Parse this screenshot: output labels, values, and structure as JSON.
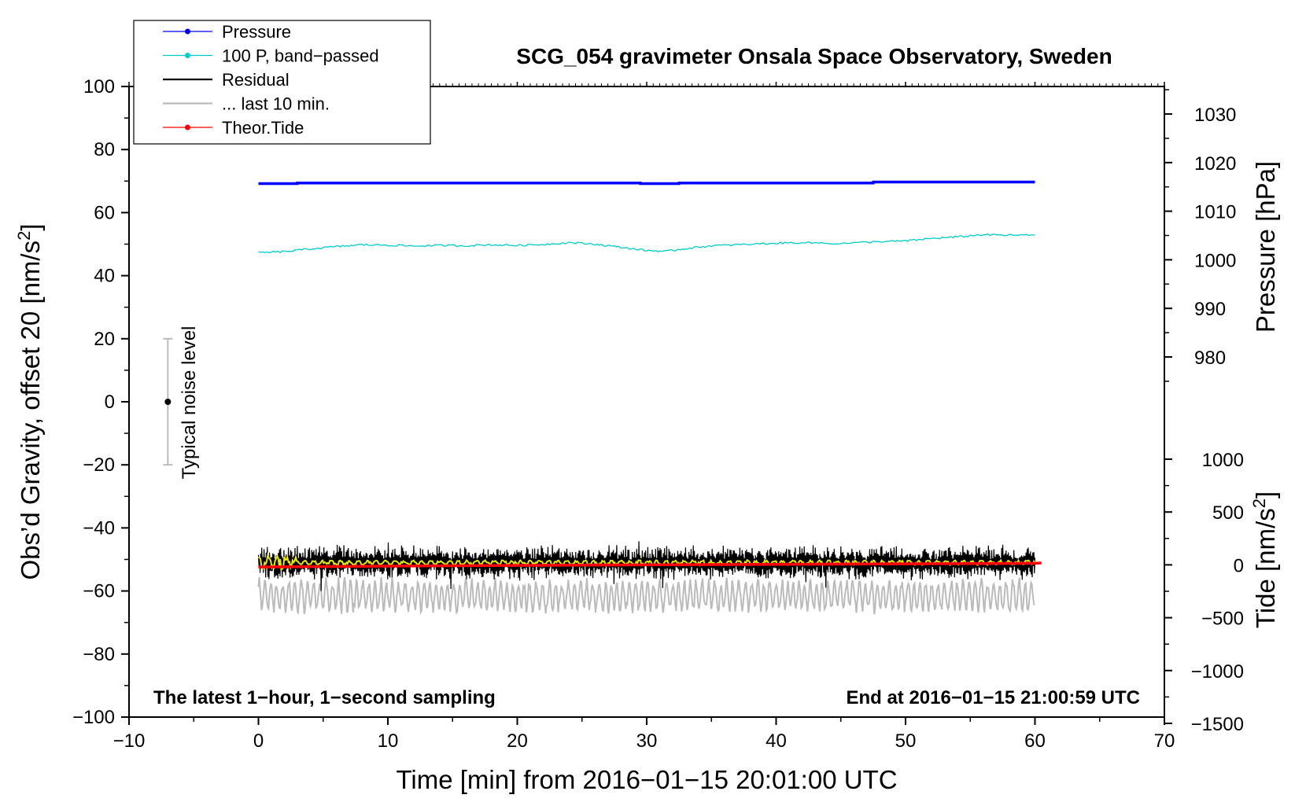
{
  "chart_data": {
    "type": "line",
    "title": "SCG_054 gravimeter Onsala Space Observatory, Sweden",
    "xlabel": "Time [min] from 2016−01−15 20:01:00 UTC",
    "ylabel_left": "Obs’d Gravity, offset 20 [nm/s",
    "ylabel_left_sup": "2",
    "ylabel_left_end": "]",
    "ylabel_right_top": "Pressure [hPa]",
    "ylabel_right_bottom": "Tide [nm/s",
    "ylabel_right_bottom_sup": "2",
    "ylabel_right_bottom_end": "]",
    "xlim": [
      -10,
      70
    ],
    "ylim_left": [
      -100,
      100
    ],
    "pressure_axis_range": [
      970,
      1035
    ],
    "tide_axis_range": [
      -1500,
      1100
    ],
    "x_ticks": [
      -10,
      0,
      10,
      20,
      30,
      40,
      50,
      60,
      70
    ],
    "x_tick_labels": [
      "−10",
      "0",
      "10",
      "20",
      "30",
      "40",
      "50",
      "60",
      "70"
    ],
    "y_left_ticks": [
      -100,
      -80,
      -60,
      -40,
      -20,
      0,
      20,
      40,
      60,
      80,
      100
    ],
    "y_left_tick_labels": [
      "−100",
      "−80",
      "−60",
      "−40",
      "−20",
      "0",
      "20",
      "40",
      "60",
      "80",
      "100"
    ],
    "pressure_ticks": [
      980,
      990,
      1000,
      1010,
      1020,
      1030
    ],
    "pressure_tick_labels": [
      "980",
      "990",
      "1000",
      "1010",
      "1020",
      "1030"
    ],
    "tide_ticks": [
      -1500,
      -1000,
      -500,
      0,
      500,
      1000
    ],
    "tide_tick_labels": [
      "−1500",
      "−1000",
      "−500",
      "0",
      "500",
      "1000"
    ],
    "note_left": "The latest 1−hour, 1−second sampling",
    "note_right": "End at 2016−01−15 21:00:59 UTC",
    "noise_indicator": {
      "label": "Typical noise level",
      "x": -7,
      "center": 0,
      "low": -20,
      "high": 20
    },
    "legend": [
      {
        "label": "Pressure",
        "color": "#0000ff",
        "marker": "dot"
      },
      {
        "label": "100 P, band−passed",
        "color": "#00cccc",
        "marker": "dot"
      },
      {
        "label": "Residual",
        "color": "#000000",
        "marker": "none"
      },
      {
        "label": "... last 10 min.",
        "color": "#bbbbbb",
        "marker": "none"
      },
      {
        "label": "Theor.Tide",
        "color": "#ff0000",
        "marker": "dot"
      }
    ],
    "series": [
      {
        "name": "Pressure",
        "axis": "left",
        "color": "#0000ff",
        "x": [
          0,
          3,
          3.01,
          29.5,
          29.51,
          32.5,
          32.51,
          47.5,
          47.51,
          60
        ],
        "y": [
          69.2,
          69.2,
          69.4,
          69.4,
          69.2,
          69.2,
          69.4,
          69.4,
          69.7,
          69.7
        ]
      },
      {
        "name": "100 P, band−passed",
        "axis": "left",
        "color": "#00cccc",
        "x": [
          0,
          2,
          4,
          6,
          8,
          10,
          12,
          14,
          16,
          18,
          20,
          22,
          24,
          26,
          28,
          30,
          31.5,
          33,
          35,
          37,
          40,
          42,
          45,
          48,
          50,
          52,
          54,
          56,
          58,
          60
        ],
        "y": [
          47.3,
          47.6,
          48.5,
          49.2,
          49.8,
          49.7,
          49.4,
          49.6,
          49.5,
          49.8,
          49.6,
          49.9,
          50.5,
          50.0,
          49.0,
          48.0,
          47.7,
          48.6,
          49.5,
          49.8,
          50.3,
          50.5,
          50.2,
          50.8,
          51.0,
          51.8,
          52.3,
          53.0,
          52.8,
          52.9
        ]
      },
      {
        "name": "Residual",
        "axis": "left",
        "color": "#000000",
        "x_start": 0,
        "x_end": 60,
        "mean": -51,
        "noise_amplitude": 4.5
      },
      {
        "name": "... last 10 min.",
        "axis": "left",
        "color": "#bbbbbb",
        "x_start": 0,
        "x_end": 60,
        "mean": -61.5,
        "min": -69,
        "max": -55
      },
      {
        "name": "Smoothed residual",
        "axis": "left",
        "color": "#e8e800",
        "x_start": 0,
        "x_end": 60,
        "mean": -51
      },
      {
        "name": "Theor.Tide",
        "axis": "tide",
        "color": "#ff0000",
        "x": [
          0,
          10,
          20,
          30,
          40,
          50,
          60,
          60.5
        ],
        "y": [
          -20,
          -12,
          -5,
          0,
          5,
          10,
          15,
          18
        ]
      }
    ]
  }
}
